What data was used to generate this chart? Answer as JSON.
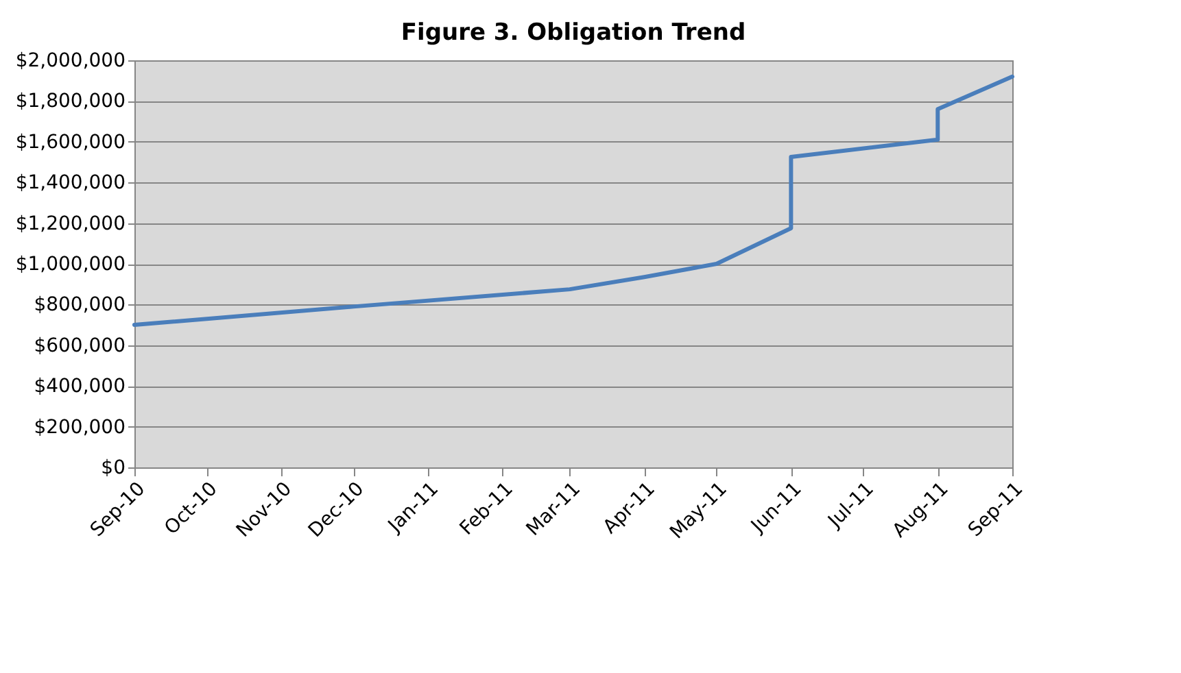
{
  "chart_data": {
    "type": "line",
    "title": "Figure 3.  Obligation Trend",
    "x": [
      "2010-09",
      "2010-12",
      "2011-03",
      "2011-04",
      "2011-05",
      "2011-06",
      "2011-06",
      "2011-08",
      "2011-08",
      "2011-09"
    ],
    "series": [
      {
        "color": "#4a7ebb",
        "values": [
          700000,
          790000,
          875000,
          935000,
          1000000,
          1175000,
          1525000,
          1610000,
          1760000,
          1920000
        ]
      }
    ],
    "xlim": [
      "2010-09",
      "2011-09"
    ],
    "xticks": [
      {
        "value": "2010-09",
        "label": "Sep-10"
      },
      {
        "value": "2010-10",
        "label": "Oct-10"
      },
      {
        "value": "2010-11",
        "label": "Nov-10"
      },
      {
        "value": "2010-12",
        "label": "Dec-10"
      },
      {
        "value": "2011-01",
        "label": "Jan-11"
      },
      {
        "value": "2011-02",
        "label": "Feb-11"
      },
      {
        "value": "2011-03",
        "label": "Mar-11"
      },
      {
        "value": "2011-04",
        "label": "Apr-11"
      },
      {
        "value": "2011-05",
        "label": "May-11"
      },
      {
        "value": "2011-06",
        "label": "Jun-11"
      },
      {
        "value": "2011-07",
        "label": "Jul-11"
      },
      {
        "value": "2011-08",
        "label": "Aug-11"
      },
      {
        "value": "2011-09",
        "label": "Sep-11"
      }
    ],
    "ylim": [
      0,
      2000000
    ],
    "yticks": [
      {
        "value": 0,
        "label": "$0"
      },
      {
        "value": 200000,
        "label": "$200,000"
      },
      {
        "value": 400000,
        "label": "$400,000"
      },
      {
        "value": 600000,
        "label": "$600,000"
      },
      {
        "value": 800000,
        "label": "$800,000"
      },
      {
        "value": 1000000,
        "label": "$1,000,000"
      },
      {
        "value": 1200000,
        "label": "$1,200,000"
      },
      {
        "value": 1400000,
        "label": "$1,400,000"
      },
      {
        "value": 1600000,
        "label": "$1,600,000"
      },
      {
        "value": 1800000,
        "label": "$1,800,000"
      },
      {
        "value": 2000000,
        "label": "$2,000,000"
      }
    ],
    "grid": "y",
    "marker": "none",
    "line_style": "solid"
  }
}
